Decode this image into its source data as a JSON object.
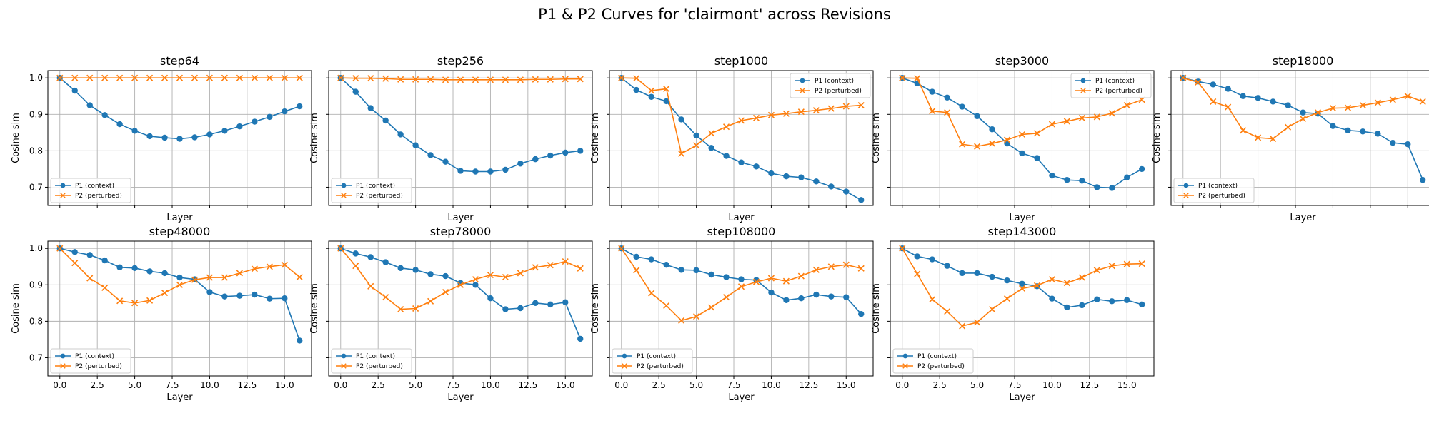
{
  "figure_title": "P1 & P2 Curves for 'clairmont' across Revisions",
  "colors": {
    "p1": "#1f77b4",
    "p2": "#ff7f0e",
    "grid": "#b0b0b0"
  },
  "chart_data": {
    "type": "line",
    "title": "P1 & P2 Curves for 'clairmont' across Revisions",
    "xlabel": "Layer",
    "ylabel": "Cosine sim",
    "xlim": [
      -0.8,
      16.8
    ],
    "ylim": [
      0.65,
      1.02
    ],
    "xticks": [
      0,
      2.5,
      5,
      7.5,
      10,
      12.5,
      15
    ],
    "xtick_labels": [
      "0.0",
      "2.5",
      "5.0",
      "7.5",
      "10.0",
      "12.5",
      "15.0"
    ],
    "yticks": [
      0.7,
      0.8,
      0.9,
      1.0
    ],
    "ytick_labels": [
      "0.7",
      "0.8",
      "0.9",
      "1.0"
    ],
    "grid": true,
    "legend_position": "lower-left",
    "x": [
      0,
      1,
      2,
      3,
      4,
      5,
      6,
      7,
      8,
      9,
      10,
      11,
      12,
      13,
      14,
      15,
      16
    ],
    "series_names": [
      "P1 (context)",
      "P2 (perturbed)"
    ],
    "panels": [
      {
        "title": "step64",
        "series": [
          {
            "name": "P1 (context)",
            "marker": "o",
            "values": [
              1.0,
              0.965,
              0.925,
              0.898,
              0.873,
              0.855,
              0.84,
              0.836,
              0.833,
              0.837,
              0.845,
              0.855,
              0.867,
              0.88,
              0.893,
              0.908,
              0.922
            ]
          },
          {
            "name": "P2 (perturbed)",
            "marker": "x",
            "values": [
              1.0,
              1.0,
              1.0,
              1.0,
              1.0,
              1.0,
              1.0,
              1.0,
              1.0,
              1.0,
              1.0,
              1.0,
              1.0,
              1.0,
              1.0,
              1.0,
              1.0
            ]
          }
        ]
      },
      {
        "title": "step256",
        "series": [
          {
            "name": "P1 (context)",
            "marker": "o",
            "values": [
              1.0,
              0.962,
              0.917,
              0.883,
              0.845,
              0.815,
              0.788,
              0.77,
              0.745,
              0.743,
              0.743,
              0.748,
              0.765,
              0.777,
              0.787,
              0.795,
              0.8
            ]
          },
          {
            "name": "P2 (perturbed)",
            "marker": "x",
            "values": [
              1.0,
              0.999,
              0.999,
              0.998,
              0.996,
              0.996,
              0.996,
              0.995,
              0.995,
              0.995,
              0.995,
              0.995,
              0.995,
              0.996,
              0.996,
              0.997,
              0.997
            ]
          }
        ]
      },
      {
        "title": "step1000",
        "series": [
          {
            "name": "P1 (context)",
            "marker": "o",
            "values": [
              1.0,
              0.967,
              0.948,
              0.936,
              0.886,
              0.842,
              0.808,
              0.786,
              0.768,
              0.757,
              0.738,
              0.73,
              0.727,
              0.716,
              0.702,
              0.688,
              0.665
            ]
          },
          {
            "name": "P2 (perturbed)",
            "marker": "x",
            "values": [
              1.0,
              0.999,
              0.965,
              0.97,
              0.792,
              0.815,
              0.848,
              0.866,
              0.883,
              0.89,
              0.898,
              0.902,
              0.907,
              0.911,
              0.916,
              0.922,
              0.925
            ]
          }
        ]
      },
      {
        "title": "step3000",
        "series": [
          {
            "name": "P1 (context)",
            "marker": "o",
            "values": [
              1.0,
              0.985,
              0.962,
              0.946,
              0.921,
              0.895,
              0.859,
              0.82,
              0.793,
              0.78,
              0.732,
              0.72,
              0.718,
              0.7,
              0.698,
              0.727,
              0.75
            ]
          },
          {
            "name": "P2 (perturbed)",
            "marker": "x",
            "values": [
              1.0,
              0.999,
              0.909,
              0.905,
              0.818,
              0.812,
              0.82,
              0.83,
              0.845,
              0.848,
              0.873,
              0.881,
              0.89,
              0.893,
              0.903,
              0.925,
              0.94
            ]
          }
        ]
      },
      {
        "title": "step18000",
        "series": [
          {
            "name": "P1 (context)",
            "marker": "o",
            "values": [
              1.0,
              0.99,
              0.982,
              0.97,
              0.95,
              0.945,
              0.935,
              0.925,
              0.905,
              0.902,
              0.868,
              0.856,
              0.853,
              0.847,
              0.822,
              0.818,
              0.72
            ]
          },
          {
            "name": "P2 (perturbed)",
            "marker": "x",
            "values": [
              1.0,
              0.988,
              0.935,
              0.92,
              0.856,
              0.836,
              0.833,
              0.865,
              0.888,
              0.905,
              0.917,
              0.918,
              0.925,
              0.932,
              0.94,
              0.95,
              0.935
            ]
          }
        ]
      },
      {
        "title": "step48000",
        "series": [
          {
            "name": "P1 (context)",
            "marker": "o",
            "values": [
              1.0,
              0.99,
              0.982,
              0.967,
              0.948,
              0.946,
              0.937,
              0.932,
              0.92,
              0.915,
              0.88,
              0.868,
              0.87,
              0.873,
              0.862,
              0.863,
              0.747
            ]
          },
          {
            "name": "P2 (perturbed)",
            "marker": "x",
            "values": [
              1.0,
              0.96,
              0.918,
              0.892,
              0.856,
              0.85,
              0.857,
              0.878,
              0.9,
              0.914,
              0.92,
              0.92,
              0.932,
              0.944,
              0.95,
              0.955,
              0.921
            ]
          }
        ]
      },
      {
        "title": "step78000",
        "series": [
          {
            "name": "P1 (context)",
            "marker": "o",
            "values": [
              1.0,
              0.986,
              0.976,
              0.962,
              0.946,
              0.941,
              0.929,
              0.924,
              0.905,
              0.9,
              0.863,
              0.833,
              0.836,
              0.85,
              0.846,
              0.852,
              0.752
            ]
          },
          {
            "name": "P2 (perturbed)",
            "marker": "x",
            "values": [
              1.0,
              0.952,
              0.896,
              0.866,
              0.833,
              0.835,
              0.855,
              0.88,
              0.9,
              0.915,
              0.927,
              0.921,
              0.932,
              0.948,
              0.954,
              0.964,
              0.945
            ]
          }
        ]
      },
      {
        "title": "step108000",
        "series": [
          {
            "name": "P1 (context)",
            "marker": "o",
            "values": [
              1.0,
              0.977,
              0.97,
              0.955,
              0.941,
              0.94,
              0.928,
              0.921,
              0.915,
              0.913,
              0.879,
              0.858,
              0.863,
              0.873,
              0.868,
              0.866,
              0.82
            ]
          },
          {
            "name": "P2 (perturbed)",
            "marker": "x",
            "values": [
              1.0,
              0.94,
              0.877,
              0.843,
              0.802,
              0.813,
              0.838,
              0.866,
              0.895,
              0.908,
              0.918,
              0.91,
              0.924,
              0.941,
              0.95,
              0.955,
              0.945
            ]
          }
        ]
      },
      {
        "title": "step143000",
        "series": [
          {
            "name": "P1 (context)",
            "marker": "o",
            "values": [
              1.0,
              0.978,
              0.97,
              0.952,
              0.932,
              0.932,
              0.922,
              0.912,
              0.903,
              0.896,
              0.862,
              0.838,
              0.844,
              0.86,
              0.855,
              0.858,
              0.846
            ]
          },
          {
            "name": "P2 (perturbed)",
            "marker": "x",
            "values": [
              1.0,
              0.93,
              0.86,
              0.827,
              0.787,
              0.797,
              0.833,
              0.862,
              0.89,
              0.898,
              0.915,
              0.905,
              0.92,
              0.94,
              0.952,
              0.957,
              0.958
            ]
          }
        ]
      }
    ]
  }
}
